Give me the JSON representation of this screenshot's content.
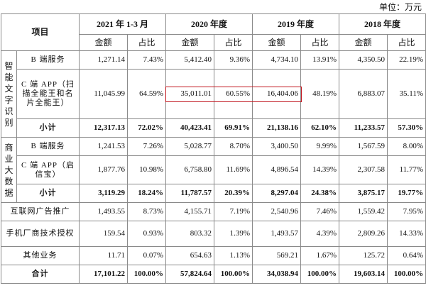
{
  "unit": "单位：万元",
  "table": {
    "header": {
      "item": "项目",
      "periods": [
        "2021 年 1-3 月",
        "2020 年度",
        "2019 年度",
        "2018 年度"
      ],
      "sub": [
        "金额",
        "占比"
      ]
    },
    "groups": [
      {
        "label": "智能文字识别",
        "rows": [
          {
            "label": "B 端服务",
            "cells": [
              "1,271.14",
              "7.43%",
              "5,412.40",
              "9.36%",
              "4,734.10",
              "13.91%",
              "4,350.50",
              "22.19%"
            ]
          },
          {
            "label": "C 端 APP（扫描全能王和名片全能王）",
            "cells": [
              "11,045.99",
              "64.59%",
              "35,011.01",
              "60.55%",
              "16,404.06",
              "48.19%",
              "6,883.07",
              "35.11%"
            ]
          },
          {
            "label": "小计",
            "cells": [
              "12,317.13",
              "72.02%",
              "40,423.41",
              "69.91%",
              "21,138.16",
              "62.10%",
              "11,233.57",
              "57.30%"
            ]
          }
        ]
      },
      {
        "label": "商业大数据",
        "rows": [
          {
            "label": "B 端服务",
            "cells": [
              "1,241.53",
              "7.26%",
              "5,028.77",
              "8.70%",
              "3,400.50",
              "9.99%",
              "1,567.59",
              "8.00%"
            ]
          },
          {
            "label": "C 端 APP（启信宝）",
            "cells": [
              "1,877.76",
              "10.98%",
              "6,758.80",
              "11.69%",
              "4,896.54",
              "14.39%",
              "2,307.58",
              "11.77%"
            ]
          },
          {
            "label": "小计",
            "cells": [
              "3,119.29",
              "18.24%",
              "11,787.57",
              "20.39%",
              "8,297.04",
              "24.38%",
              "3,875.17",
              "19.77%"
            ]
          }
        ]
      }
    ],
    "rows": [
      {
        "label": "互联网广告推广",
        "cells": [
          "1,493.55",
          "8.73%",
          "4,155.71",
          "7.19%",
          "2,540.96",
          "7.46%",
          "1,559.42",
          "7.95%"
        ]
      },
      {
        "label": "手机厂商技术授权",
        "cells": [
          "159.54",
          "0.93%",
          "803.32",
          "1.39%",
          "1,493.57",
          "4.39%",
          "2,809.26",
          "14.33%"
        ]
      },
      {
        "label": "其他业务",
        "cells": [
          "11.71",
          "0.07%",
          "654.63",
          "1.13%",
          "569.21",
          "1.67%",
          "125.72",
          "0.64%"
        ]
      },
      {
        "label": "合计",
        "cells": [
          "17,101.22",
          "100.00%",
          "57,824.64",
          "100.00%",
          "34,038.94",
          "100.00%",
          "19,603.14",
          "100.00%"
        ]
      }
    ]
  }
}
